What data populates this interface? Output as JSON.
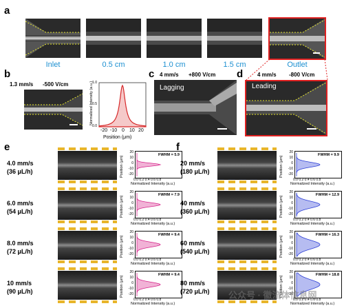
{
  "panel_a": {
    "letter": "a",
    "captions": [
      "Inlet",
      "0.5 cm",
      "1.0 cm",
      "1.5 cm",
      "Outlet"
    ]
  },
  "panel_b": {
    "letter": "b",
    "speed": "1.3 mm/s",
    "field": "-500 V/cm",
    "ylabel": "Normalized Intensity (a.u.)",
    "xlabel": "Position (μm)",
    "xticks": [
      "-20",
      "-10",
      "0",
      "10",
      "20"
    ],
    "yticks": [
      "0.0",
      "0.5",
      "1.0"
    ],
    "color": "#d62728"
  },
  "panel_c": {
    "letter": "c",
    "speed": "4 mm/s",
    "field": "+800 V/cm",
    "tag": "Lagging"
  },
  "panel_d": {
    "letter": "d",
    "speed": "4 mm/s",
    "field": "-800 V/cm",
    "tag": "Leading",
    "border_color": "#e02020"
  },
  "panel_e": {
    "letter": "e",
    "rows": [
      {
        "speed": "4.0 mm/s",
        "flow": "(36 μL/h)",
        "fwhm": "FWHM = 5.9"
      },
      {
        "speed": "6.0 mm/s",
        "flow": "(54 μL/h)",
        "fwhm": "FWHM = 7.9"
      },
      {
        "speed": "8.0 mm/s",
        "flow": "(72 μL/h)",
        "fwhm": "FWHM = 9.4"
      },
      {
        "speed": "10 mm/s",
        "flow": "(90 μL/h)",
        "fwhm": "FWHM = 9.4"
      }
    ],
    "plot_xlabel": "Normalized Intensity (a.u.)",
    "plot_ylabel": "Position (μm)",
    "xticks": "0.0 0.2 0.4 0.6 0.8",
    "yticks": [
      "20",
      "10",
      "0",
      "-10",
      "-20"
    ],
    "curve_color": "#d6238a"
  },
  "panel_f": {
    "letter": "f",
    "rows": [
      {
        "speed": "20 mm/s",
        "flow": "(180 μL/h)",
        "fwhm": "FWHM = 9.9"
      },
      {
        "speed": "40 mm/s",
        "flow": "(360 μL/h)",
        "fwhm": "FWHM = 12.9"
      },
      {
        "speed": "60 mm/s",
        "flow": "(540 μL/h)",
        "fwhm": "FWHM = 16.3"
      },
      {
        "speed": "80 mm/s",
        "flow": "(720 μL/h)",
        "fwhm": "FWHM = 18.8"
      }
    ],
    "plot_xlabel": "Normalized Intensity (a.u.)",
    "plot_ylabel": "Position (μm)",
    "xticks": "0.0 0.2 0.4 0.6 0.8",
    "yticks": [
      "20",
      "10",
      "0",
      "-10",
      "-20"
    ],
    "curve_color": "#2d3fd6"
  },
  "watermark": "公众号 · 徽流体信息网"
}
